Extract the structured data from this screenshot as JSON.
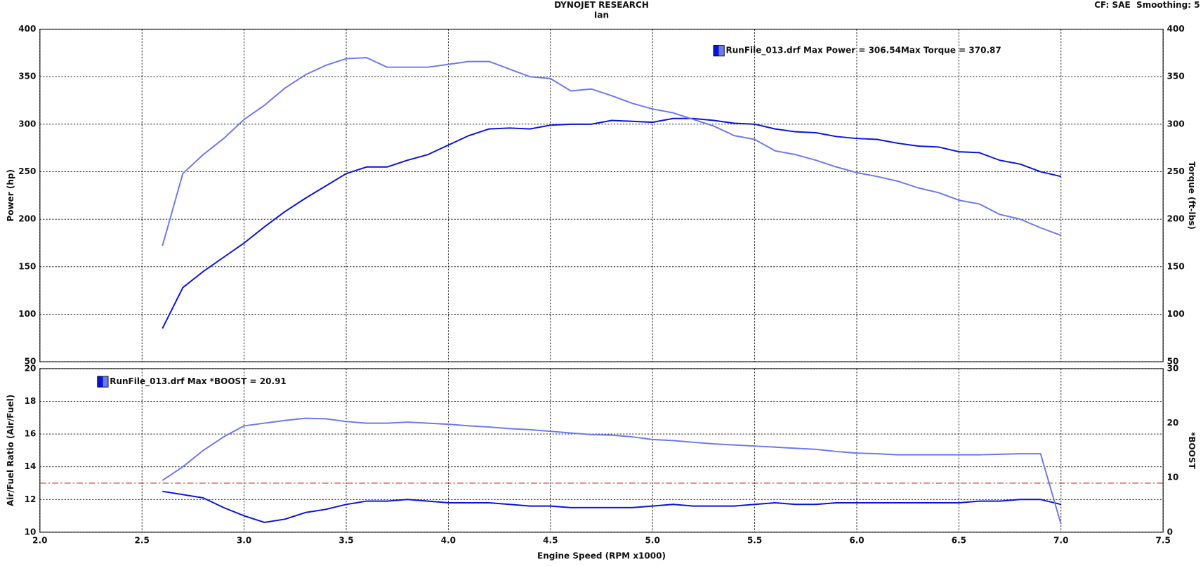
{
  "chart_data": [
    {
      "type": "line",
      "title": "DYNOJET RESEARCH",
      "subtitle": "Ian",
      "note": "CF: SAE  Smoothing: 5",
      "legend": "RunFile_013.drf Max Power = 306.54Max Torque = 370.87",
      "y_label": "Power (hp)",
      "y2_label": "Torque (ft-lbs)",
      "ylim": [
        50,
        400
      ],
      "yticks": [
        50,
        100,
        150,
        200,
        250,
        300,
        350,
        400
      ],
      "y2lim": [
        50,
        400
      ],
      "y2ticks": [
        50,
        100,
        150,
        200,
        250,
        300,
        350,
        400
      ],
      "grid": true,
      "x": [
        2.6,
        2.7,
        2.8,
        2.9,
        3.0,
        3.1,
        3.2,
        3.3,
        3.4,
        3.5,
        3.6,
        3.7,
        3.8,
        3.9,
        4.0,
        4.1,
        4.2,
        4.3,
        4.4,
        4.5,
        4.6,
        4.7,
        4.8,
        4.9,
        5.0,
        5.1,
        5.2,
        5.3,
        5.4,
        5.5,
        5.6,
        5.7,
        5.8,
        5.9,
        6.0,
        6.1,
        6.2,
        6.3,
        6.4,
        6.5,
        6.6,
        6.7,
        6.8,
        6.9,
        7.0
      ],
      "series": [
        {
          "color": "#0a14d6",
          "values": [
            85,
            128,
            145,
            160,
            175,
            192,
            208,
            222,
            235,
            248,
            255,
            255,
            262,
            268,
            278,
            288,
            295,
            296,
            295,
            299,
            300,
            300,
            304,
            303,
            302,
            306,
            306,
            304,
            301,
            300,
            295,
            292,
            291,
            287,
            285,
            284,
            280,
            277,
            276,
            271,
            270,
            262,
            258,
            250,
            245
          ]
        },
        {
          "color": "#6d78ee",
          "axis": "y2",
          "values": [
            172,
            248,
            268,
            285,
            305,
            320,
            338,
            352,
            362,
            369,
            370,
            360,
            360,
            360,
            363,
            366,
            366,
            358,
            350,
            348,
            335,
            337,
            330,
            322,
            316,
            312,
            305,
            298,
            288,
            284,
            272,
            268,
            262,
            255,
            249,
            245,
            240,
            233,
            228,
            220,
            216,
            205,
            200,
            191,
            183
          ]
        }
      ]
    },
    {
      "type": "line",
      "legend": "RunFile_013.drf Max *BOOST = 20.91",
      "x_label": "Engine Speed (RPM x1000)",
      "y_label": "Air/Fuel Ratio (Air/Fuel)",
      "y2_label": "*BOOST",
      "xlim": [
        2.0,
        7.5
      ],
      "xticks": [
        {
          "value": 2.0,
          "label": "2.0"
        },
        2.5,
        {
          "value": 3.0,
          "label": "3.0"
        },
        3.5,
        {
          "value": 4.0,
          "label": "4.0"
        },
        4.5,
        {
          "value": 5.0,
          "label": "5.0"
        },
        5.5,
        {
          "value": 6.0,
          "label": "6.0"
        },
        6.5,
        {
          "value": 7.0,
          "label": "7.0"
        },
        7.5
      ],
      "ylim": [
        10,
        20
      ],
      "yticks": [
        10,
        12,
        14,
        16,
        18,
        20
      ],
      "y2lim": [
        0,
        30
      ],
      "y2ticks": [
        0,
        10,
        20,
        30
      ],
      "grid": true,
      "reference_line": 13,
      "reference_color": "#d42020",
      "x": [
        2.6,
        2.7,
        2.8,
        2.9,
        3.0,
        3.1,
        3.2,
        3.3,
        3.4,
        3.5,
        3.6,
        3.7,
        3.8,
        3.9,
        4.0,
        4.1,
        4.2,
        4.3,
        4.4,
        4.5,
        4.6,
        4.7,
        4.8,
        4.9,
        5.0,
        5.1,
        5.2,
        5.3,
        5.4,
        5.5,
        5.6,
        5.7,
        5.8,
        5.9,
        6.0,
        6.1,
        6.2,
        6.3,
        6.4,
        6.5,
        6.6,
        6.7,
        6.8,
        6.9,
        7.0
      ],
      "series": [
        {
          "color": "#0a14d6",
          "values": [
            12.5,
            12.3,
            12.1,
            11.5,
            11.0,
            10.6,
            10.8,
            11.2,
            11.4,
            11.7,
            11.9,
            11.9,
            12.0,
            11.9,
            11.8,
            11.8,
            11.8,
            11.7,
            11.6,
            11.6,
            11.5,
            11.5,
            11.5,
            11.5,
            11.6,
            11.7,
            11.6,
            11.6,
            11.6,
            11.7,
            11.8,
            11.7,
            11.7,
            11.8,
            11.8,
            11.8,
            11.8,
            11.8,
            11.8,
            11.8,
            11.9,
            11.9,
            12.0,
            12.0,
            11.7
          ]
        },
        {
          "color": "#6d78ee",
          "axis": "y2",
          "values": [
            9.5,
            12,
            15,
            17.5,
            19.5,
            20,
            20.5,
            20.9,
            20.8,
            20.3,
            20,
            20,
            20.2,
            20,
            19.8,
            19.5,
            19.3,
            19,
            18.8,
            18.5,
            18.2,
            17.9,
            17.8,
            17.5,
            17.0,
            16.8,
            16.5,
            16.2,
            16.0,
            15.8,
            15.6,
            15.4,
            15.2,
            14.8,
            14.5,
            14.4,
            14.2,
            14.2,
            14.2,
            14.2,
            14.2,
            14.3,
            14.4,
            14.4,
            1.5
          ]
        }
      ]
    }
  ]
}
